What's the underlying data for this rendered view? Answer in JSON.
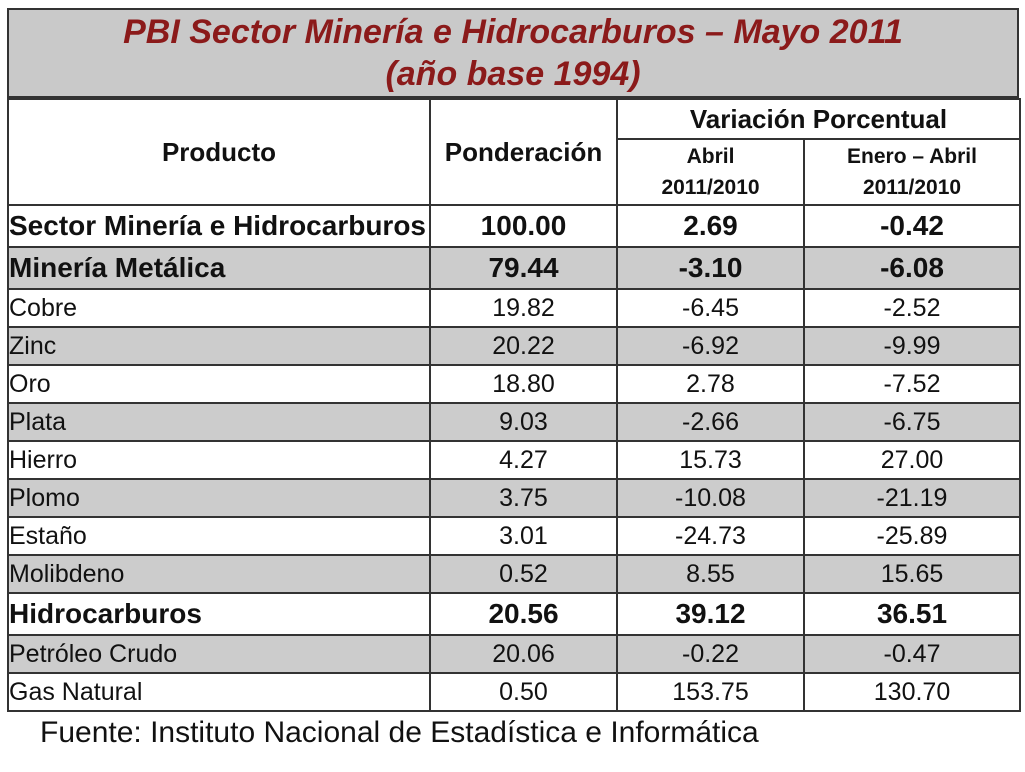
{
  "title": {
    "line1": "PBI Sector Minería e Hidrocarburos – Mayo 2011",
    "line2": "(año base 1994)"
  },
  "header": {
    "producto": "Producto",
    "ponderacion": "Ponderación",
    "variacion": "Variación Porcentual",
    "abril": [
      "Abril",
      "2011/2010"
    ],
    "enero_abril": [
      "Enero – Abril",
      "2011/2010"
    ]
  },
  "rows": [
    {
      "name": "Sector Minería e Hidrocarburos",
      "pond": "100.00",
      "abril": "2.69",
      "enero_abril": "-0.42",
      "style": "bold"
    },
    {
      "name": "Minería Metálica",
      "pond": "79.44",
      "abril": "-3.10",
      "enero_abril": "-6.08",
      "style": "bold shade"
    },
    {
      "name": "Cobre",
      "pond": "19.82",
      "abril": "-6.45",
      "enero_abril": "-2.52",
      "style": ""
    },
    {
      "name": "Zinc",
      "pond": "20.22",
      "abril": "-6.92",
      "enero_abril": "-9.99",
      "style": "shade"
    },
    {
      "name": "Oro",
      "pond": "18.80",
      "abril": "2.78",
      "enero_abril": "-7.52",
      "style": ""
    },
    {
      "name": "Plata",
      "pond": "9.03",
      "abril": "-2.66",
      "enero_abril": "-6.75",
      "style": "shade"
    },
    {
      "name": "Hierro",
      "pond": "4.27",
      "abril": "15.73",
      "enero_abril": "27.00",
      "style": ""
    },
    {
      "name": "Plomo",
      "pond": "3.75",
      "abril": "-10.08",
      "enero_abril": "-21.19",
      "style": "shade"
    },
    {
      "name": "Estaño",
      "pond": "3.01",
      "abril": "-24.73",
      "enero_abril": "-25.89",
      "style": ""
    },
    {
      "name": "Molibdeno",
      "pond": "0.52",
      "abril": "8.55",
      "enero_abril": "15.65",
      "style": "shade"
    },
    {
      "name": "Hidrocarburos",
      "pond": "20.56",
      "abril": "39.12",
      "enero_abril": "36.51",
      "style": "bold"
    },
    {
      "name": "Petróleo Crudo",
      "pond": "20.06",
      "abril": "-0.22",
      "enero_abril": "-0.47",
      "style": "shade"
    },
    {
      "name": "Gas Natural",
      "pond": "0.50",
      "abril": "153.75",
      "enero_abril": "130.70",
      "style": ""
    }
  ],
  "source": "Fuente: Instituto Nacional de Estadística e Informática",
  "colors": {
    "title_text": "#8b1a1a",
    "title_bg": "#c9c9c9",
    "shade": "#cccccc"
  }
}
